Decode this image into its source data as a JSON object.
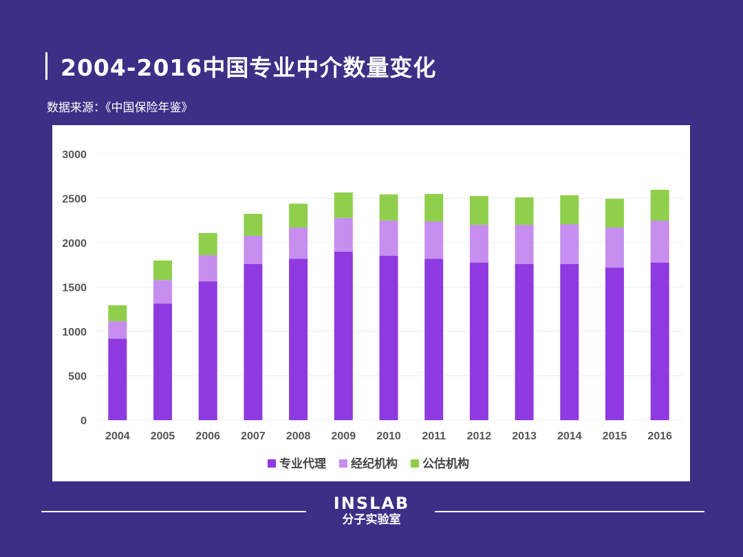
{
  "header": {
    "title": "2004-2016中国专业中介数量变化",
    "source": "数据来源：《中国保险年鉴》"
  },
  "footer": {
    "brand_en": "INSLAB",
    "brand_cn": "分子实验室"
  },
  "colors": {
    "background": "#3d2f86",
    "agency": "#8e3ae0",
    "broker": "#c68eee",
    "adjuster": "#8fcf4c"
  },
  "chart_data": {
    "type": "bar",
    "stacked": true,
    "title": "2004-2016中国专业中介数量变化",
    "categories": [
      "2004",
      "2005",
      "2006",
      "2007",
      "2008",
      "2009",
      "2010",
      "2011",
      "2012",
      "2013",
      "2014",
      "2015",
      "2016"
    ],
    "series": [
      {
        "name": "专业代理",
        "color": "#8e3ae0",
        "values": [
          920,
          1315,
          1565,
          1760,
          1820,
          1900,
          1855,
          1820,
          1775,
          1760,
          1760,
          1720,
          1775
        ]
      },
      {
        "name": "经纪机构",
        "color": "#c68eee",
        "values": [
          195,
          265,
          295,
          318,
          350,
          380,
          395,
          420,
          427,
          442,
          449,
          450,
          473
        ]
      },
      {
        "name": "公估机构",
        "color": "#8fcf4c",
        "values": [
          180,
          220,
          250,
          248,
          271,
          287,
          295,
          310,
          325,
          310,
          326,
          325,
          349
        ]
      }
    ],
    "yticks": [
      "0",
      "500",
      "1000",
      "1500",
      "2000",
      "2500",
      "3000"
    ],
    "ylim": [
      0,
      3000
    ],
    "grid": true,
    "legend": "bottom"
  }
}
